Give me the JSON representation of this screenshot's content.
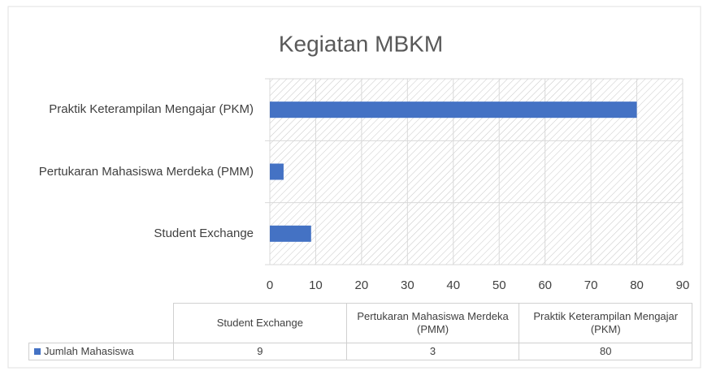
{
  "chart_data": {
    "type": "bar",
    "orientation": "horizontal",
    "title": "Kegiatan MBKM",
    "categories": [
      "Student Exchange",
      "Pertukaran Mahasiswa Merdeka (PMM)",
      "Praktik Keterampilan Mengajar (PKM)"
    ],
    "series": [
      {
        "name": "Jumlah Mahasiswa",
        "color": "#4472c4",
        "values": [
          9,
          3,
          80
        ]
      }
    ],
    "xlim": [
      0,
      90
    ],
    "xticks": [
      0,
      10,
      20,
      30,
      40,
      50,
      60,
      70,
      80,
      90
    ],
    "grid": true,
    "data_table": true
  }
}
